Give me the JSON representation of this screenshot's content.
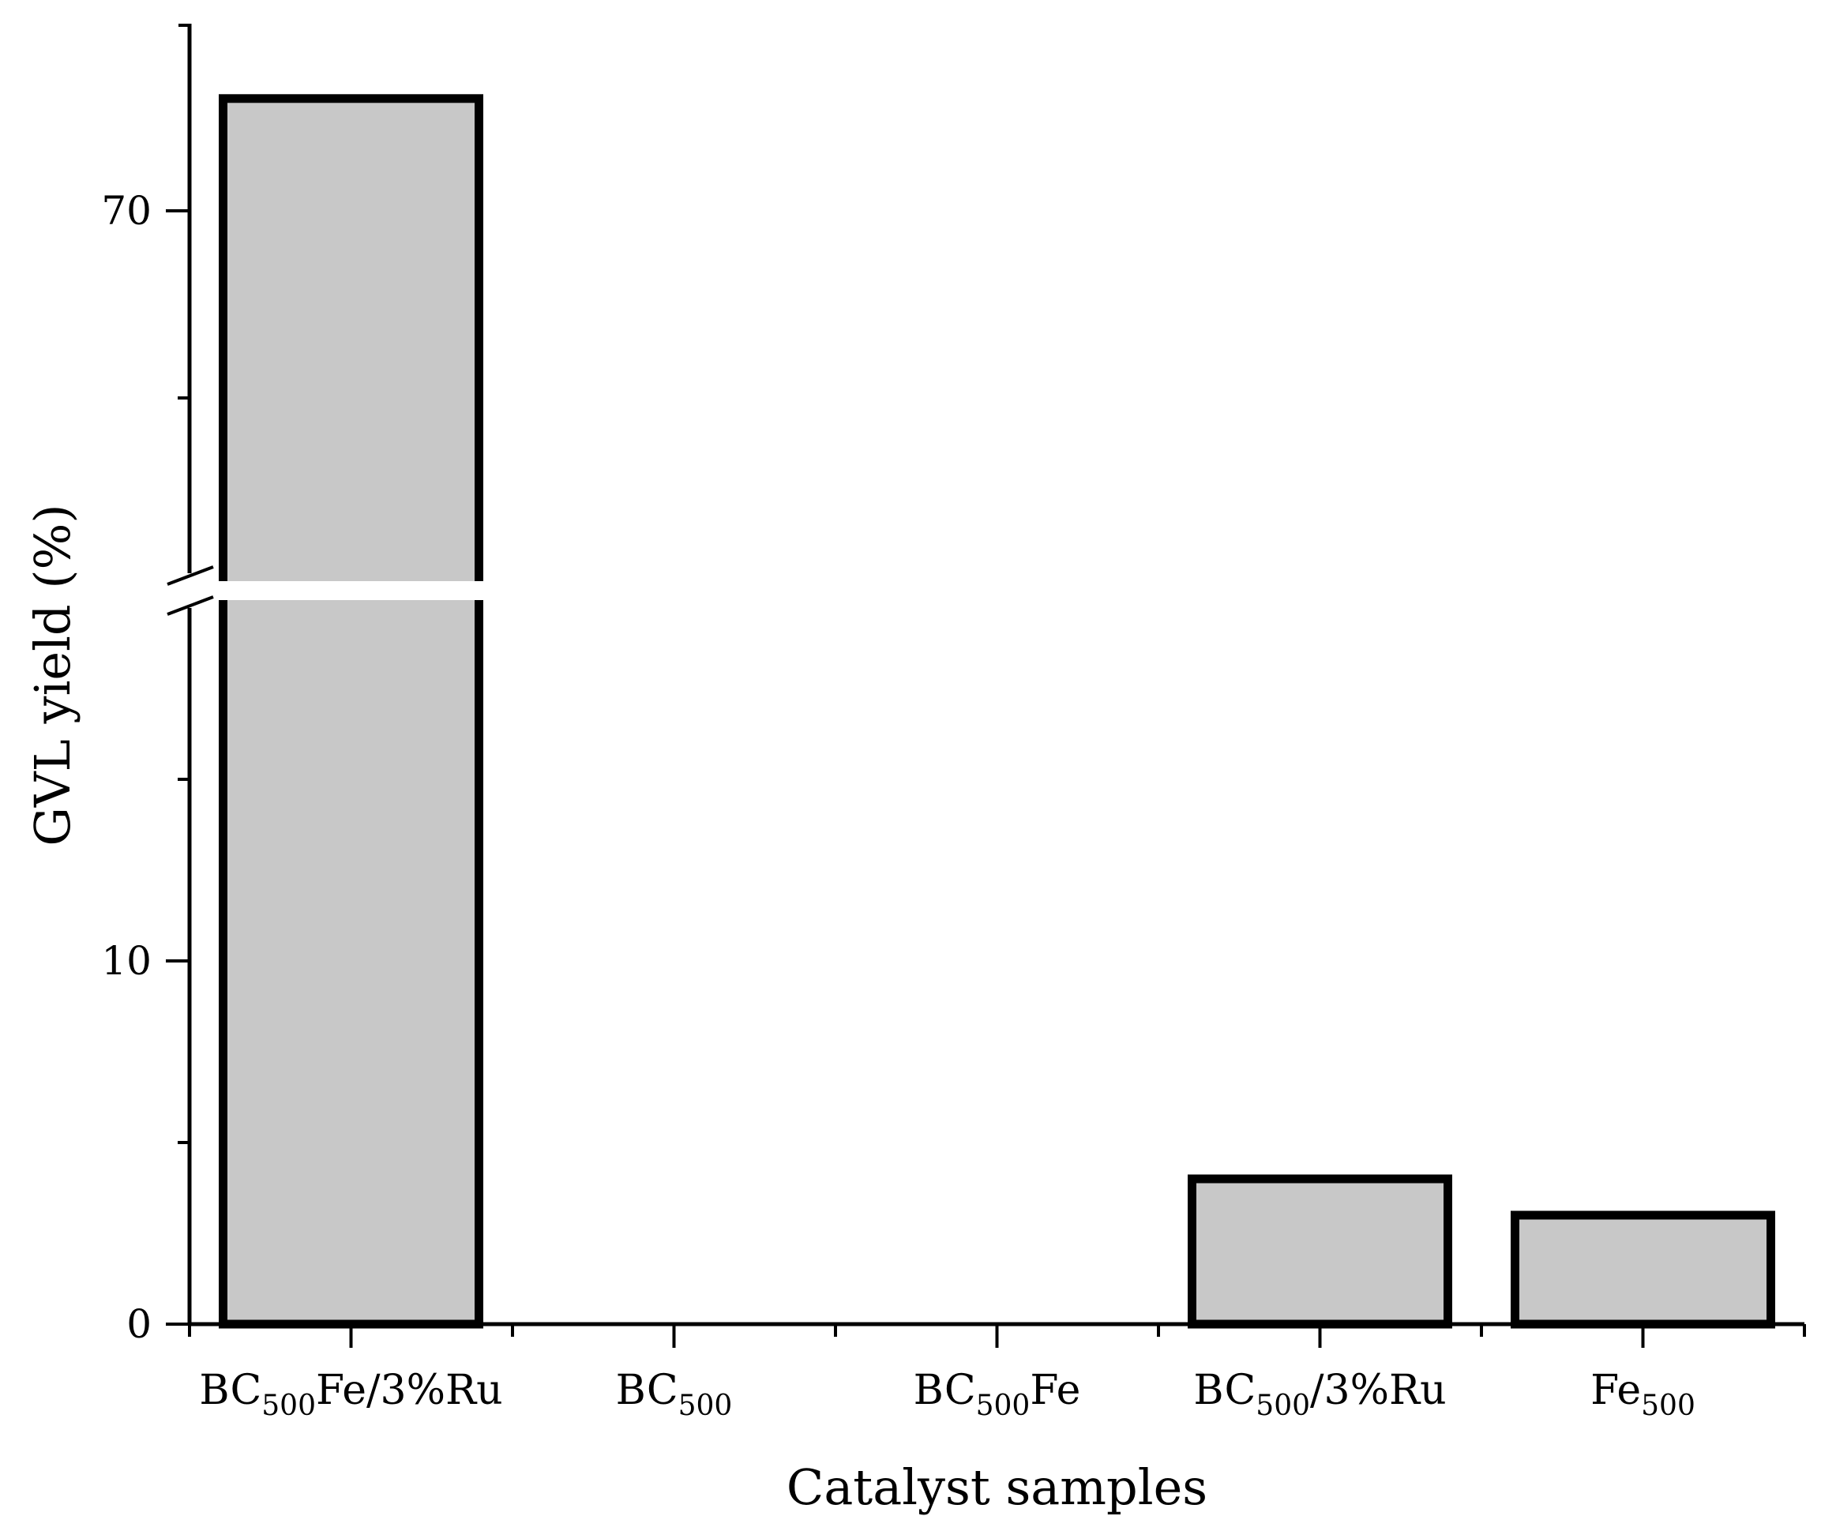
{
  "chart_data": {
    "type": "bar",
    "title": "",
    "xlabel": "Catalyst samples",
    "ylabel": "GVL yield (%)",
    "categories": [
      {
        "main": "BC",
        "sub": "500",
        "rest": "Fe/3%Ru"
      },
      {
        "main": "BC",
        "sub": "500",
        "rest": ""
      },
      {
        "main": "BC",
        "sub": "500",
        "rest": "Fe"
      },
      {
        "main": "BC",
        "sub": "500",
        "rest": "/3%Ru"
      },
      {
        "main": "Fe",
        "sub": "500",
        "rest": ""
      }
    ],
    "values": [
      73,
      0,
      0,
      4,
      3
    ],
    "y_break": {
      "lower_max": 20,
      "upper_min": 60,
      "upper_max": 75
    },
    "ylim": [
      0,
      75
    ],
    "y_ticks_labeled": [
      0,
      10,
      70
    ],
    "y_ticks_minor": [
      5,
      15,
      65
    ],
    "grid": false,
    "legend": "none",
    "bar_fill": "#c8c8c8",
    "bar_stroke": "#000000"
  }
}
